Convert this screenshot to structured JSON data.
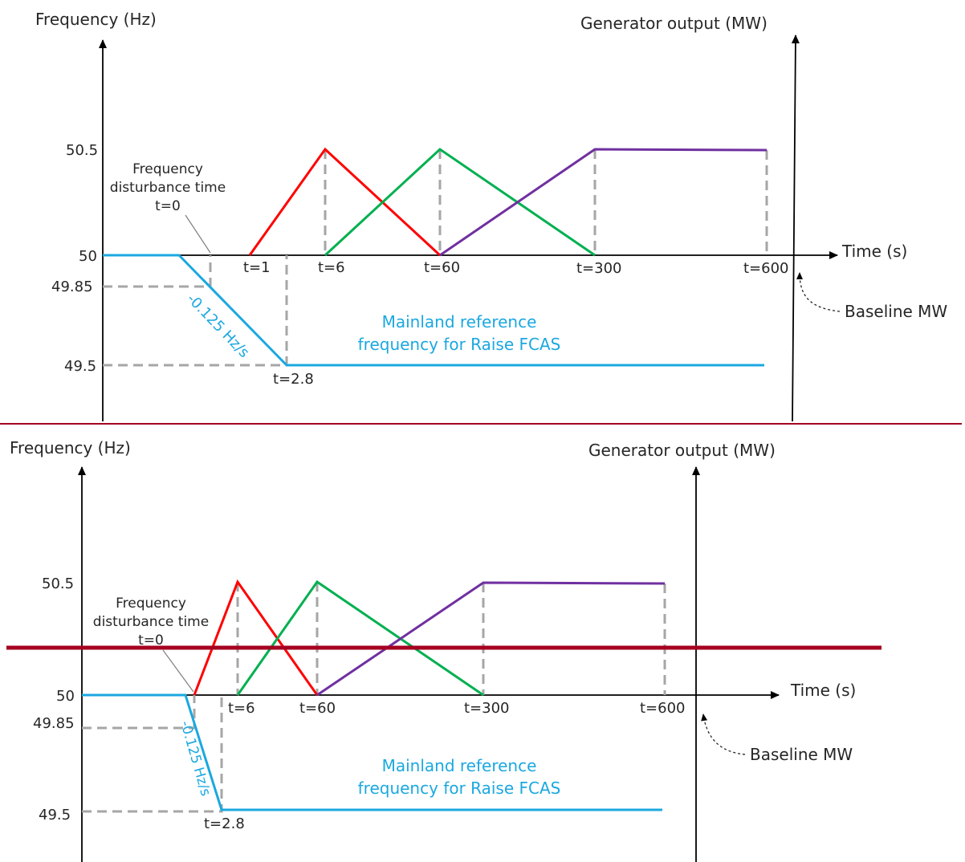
{
  "panels": [
    {
      "y_axis_title": "Frequency (Hz)",
      "right_axis_title": "Generator output (MW)",
      "x_axis_title": "Time (s)",
      "y_ticks": [
        "50.5",
        "50",
        "49.85",
        "49.5"
      ],
      "t_labels": [
        "t=1",
        "t=6",
        "t=60",
        "t=300",
        "t=600"
      ],
      "t_drop_label": "t=2.8",
      "disturbance_annotation": [
        "Frequency",
        "disturbance time",
        "t=0"
      ],
      "slope_label": "-0.125 Hz/s",
      "reference_label": [
        "Mainland reference",
        "frequency for Raise FCAS"
      ],
      "baseline_label": "Baseline MW"
    },
    {
      "y_axis_title": "Frequency (Hz)",
      "right_axis_title": "Generator output (MW)",
      "x_axis_title": "Time (s)",
      "y_ticks": [
        "50.5",
        "50",
        "49.85",
        "49.5"
      ],
      "t_labels": [
        "t=6",
        "t=60",
        "t=300",
        "t=600"
      ],
      "t_drop_label": "t=2.8",
      "disturbance_annotation": [
        "Frequency",
        "disturbance time",
        "t=0"
      ],
      "slope_label": "-0.125 Hz/s",
      "reference_label": [
        "Mainland reference",
        "frequency for Raise FCAS"
      ],
      "baseline_label": "Baseline MW"
    }
  ],
  "colors": {
    "frequency_line": "#1ba8e0",
    "response_6s": "#ff0000",
    "response_60s": "#00b050",
    "response_5min": "#7030a0",
    "guide_dashes": "#a6a6a6",
    "separator": "#a50021"
  }
}
